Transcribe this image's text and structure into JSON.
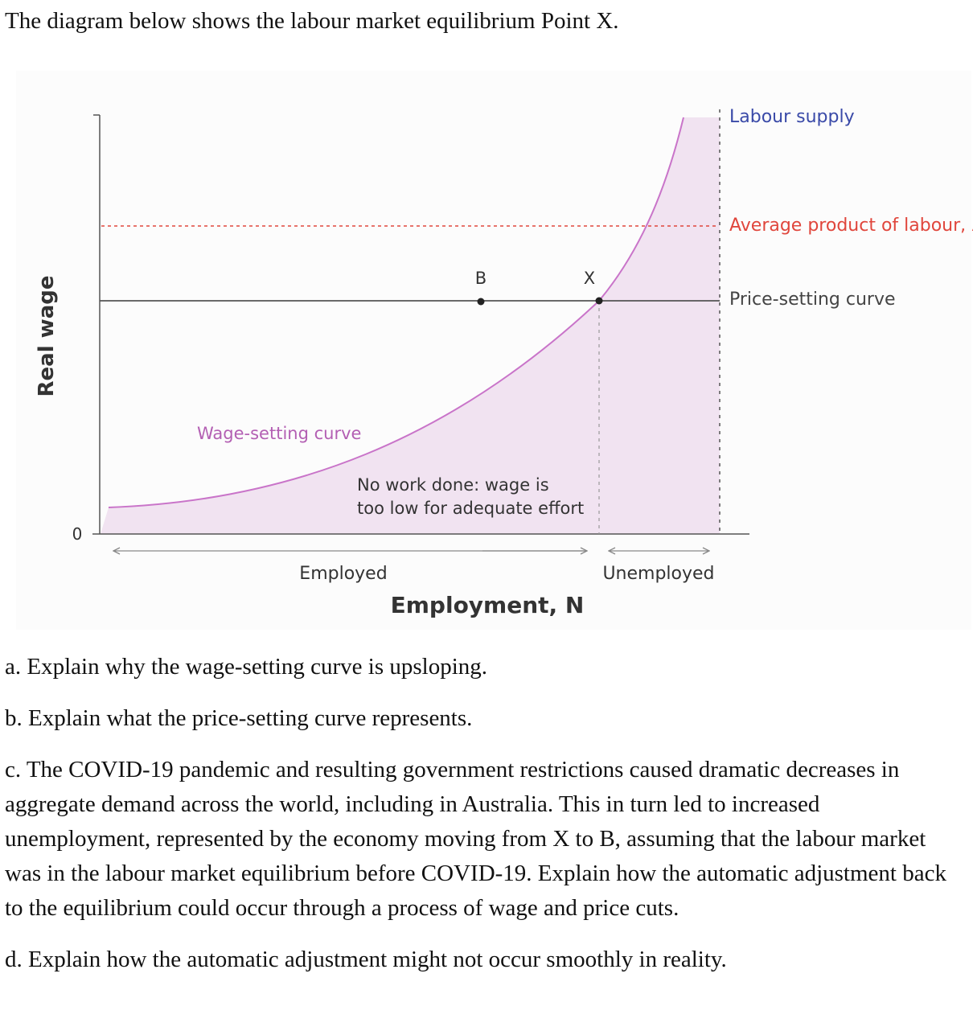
{
  "intro": "The diagram below shows the labour market equilibrium Point X.",
  "diagram": {
    "y_axis_label": "Real wage",
    "x_axis_label": "Employment, N",
    "origin_label": "0",
    "point_b_label": "B",
    "point_x_label": "X",
    "labour_supply_label": "Labour supply",
    "average_product_label": "Average product of labour, λ",
    "price_setting_label": "Price-setting curve",
    "wage_setting_label": "Wage-setting curve",
    "no_work_line1": "No work done: wage is",
    "no_work_line2": "too low for adequate effort",
    "employed_label": "Employed",
    "unemployed_label": "Unemployed",
    "colors": {
      "wage_curve": "#c974c9",
      "shade": "#f1e3f1",
      "average_product": "#e0463c",
      "labour_supply_text": "#3a4aa8",
      "axes": "#555555"
    }
  },
  "questions": [
    "a. Explain why the wage-setting curve is upsloping.",
    "b. Explain what the price-setting curve represents.",
    "c. The COVID-19 pandemic and resulting government restrictions caused dramatic decreases in aggregate demand across the world, including in Australia. This in turn led to increased unemployment, represented by the economy moving from X to B, assuming that the labour market was in the labour market equilibrium before COVID-19.  Explain how the automatic adjustment back to the equilibrium could occur through a process of wage and price cuts.",
    "d. Explain how the automatic adjustment might not occur smoothly in reality."
  ]
}
